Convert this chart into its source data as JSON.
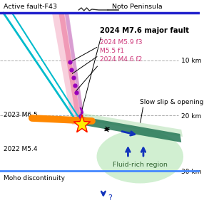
{
  "title_active_fault": "Active fault-F43",
  "title_noto": "Noto Peninsula",
  "label_major_fault": "2024 M7.6 major fault",
  "label_f3": "2024 M5.9 f3",
  "label_f1": "M5.5 f1",
  "label_f2": "2024 M4.6 f2",
  "label_slow_slip": "Slow slip & opening",
  "label_2023": "2023 M6.5",
  "label_2022": "2022 M5.4",
  "label_moho": "Moho discontinuity",
  "label_fluid": "Fluid-rich region",
  "depth_10": "10 km",
  "depth_20": "20 km",
  "depth_30": "30 km",
  "bg_color": "#ffffff",
  "surface_line_color": "#2222cc",
  "moho_color": "#4488ff",
  "cyan_color": "#00bbcc",
  "pink_wide_color": "#f5b8cc",
  "pink_narrow_color": "#ee88aa",
  "purple_band_color": "#cc88cc",
  "orange_color": "#ff8800",
  "teal_color": "#2a7a5a",
  "green_light_color": "#aaddaa",
  "fluid_color": "#cceecc",
  "arrow_color": "#1133bb",
  "star_yellow": "#ffee00",
  "star_red": "#dd1111",
  "purple_dot_color": "#9900bb",
  "lightning_color": "#9900bb",
  "gray_dash_color": "#aaaaaa",
  "text_pink_color": "#cc3377",
  "text_green_color": "#336633",
  "black": "#000000"
}
